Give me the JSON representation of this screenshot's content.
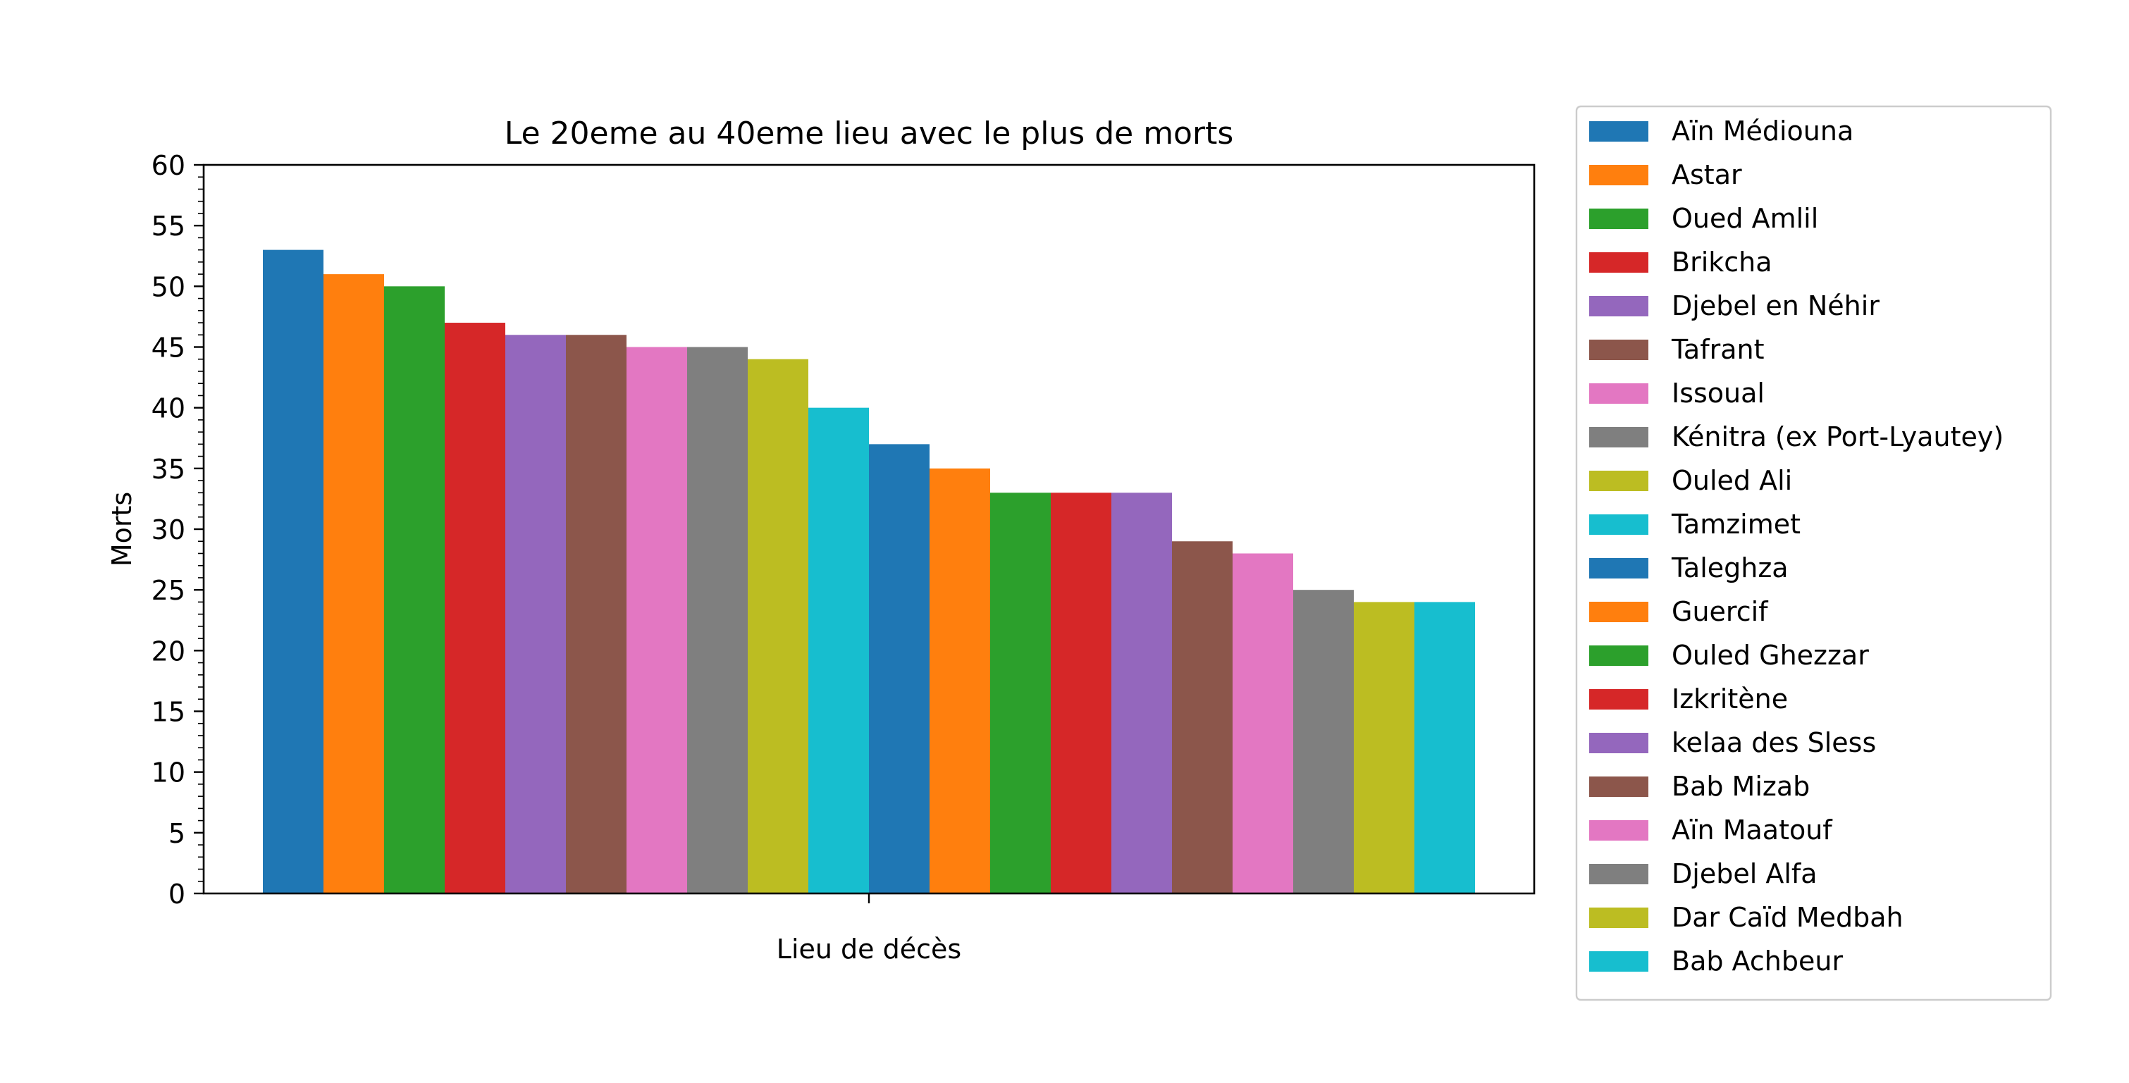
{
  "chart_data": {
    "type": "bar",
    "title": "Le 20eme au 40eme lieu avec le plus de morts",
    "xlabel": "Lieu de décès",
    "ylabel": "Morts",
    "ylim": [
      0,
      60
    ],
    "yticks": [
      0,
      5,
      10,
      15,
      20,
      25,
      30,
      35,
      40,
      45,
      50,
      55,
      60
    ],
    "grid": false,
    "legend_position": "right, outside plot",
    "series": [
      {
        "name": "Aïn Médiouna",
        "value": 53,
        "color": "#1f77b4"
      },
      {
        "name": "Astar",
        "value": 51,
        "color": "#ff7f0e"
      },
      {
        "name": "Oued Amlil",
        "value": 50,
        "color": "#2ca02c"
      },
      {
        "name": "Brikcha",
        "value": 47,
        "color": "#d62728"
      },
      {
        "name": "Djebel en Néhir",
        "value": 46,
        "color": "#9467bd"
      },
      {
        "name": "Tafrant",
        "value": 46,
        "color": "#8c564b"
      },
      {
        "name": "Issoual",
        "value": 45,
        "color": "#e377c2"
      },
      {
        "name": "Kénitra (ex Port-Lyautey)",
        "value": 45,
        "color": "#7f7f7f"
      },
      {
        "name": "Ouled Ali",
        "value": 44,
        "color": "#bcbd22"
      },
      {
        "name": "Tamzimet",
        "value": 40,
        "color": "#17becf"
      },
      {
        "name": "Taleghza",
        "value": 37,
        "color": "#1f77b4"
      },
      {
        "name": "Guercif",
        "value": 35,
        "color": "#ff7f0e"
      },
      {
        "name": "Ouled Ghezzar",
        "value": 33,
        "color": "#2ca02c"
      },
      {
        "name": "Izkritène",
        "value": 33,
        "color": "#d62728"
      },
      {
        "name": "kelaa des Sless",
        "value": 33,
        "color": "#9467bd"
      },
      {
        "name": "Bab Mizab",
        "value": 29,
        "color": "#8c564b"
      },
      {
        "name": "Aïn Maatouf",
        "value": 28,
        "color": "#e377c2"
      },
      {
        "name": "Djebel Alfa",
        "value": 25,
        "color": "#7f7f7f"
      },
      {
        "name": "Dar Caïd Medbah",
        "value": 24,
        "color": "#bcbd22"
      },
      {
        "name": "Bab Achbeur",
        "value": 24,
        "color": "#17becf"
      }
    ]
  }
}
